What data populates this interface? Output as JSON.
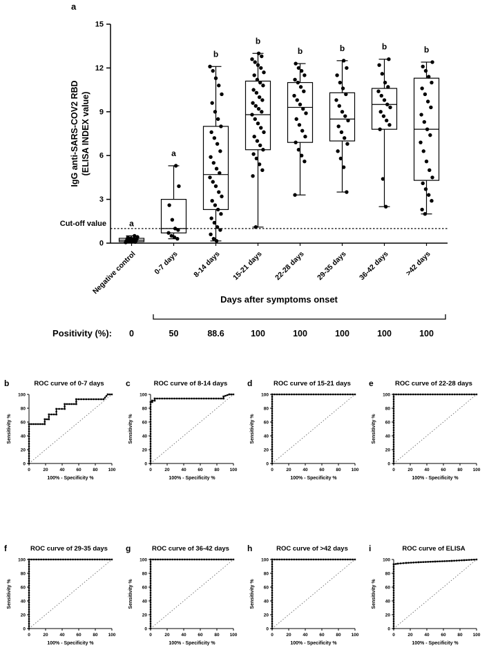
{
  "colors": {
    "ink": "#000000",
    "background": "#ffffff"
  },
  "chart_data": [
    {
      "type": "box-scatter",
      "panel_label": "a",
      "ylabel_lines": [
        "IgG anti-SARS-COV2 RBD",
        "(ELISA INDEX value)"
      ],
      "xlabel": "Days after symptoms onset",
      "ylim": [
        0,
        15
      ],
      "yticks": [
        0,
        3,
        6,
        9,
        12,
        15
      ],
      "cutoff": {
        "label": "Cut-off value",
        "value": 1.0
      },
      "positivity_label": "Positivity (%):",
      "categories": [
        {
          "label": "Negative control",
          "sig": "a",
          "positivity": "0",
          "box": {
            "lo": 0.05,
            "q1": 0.1,
            "median": 0.2,
            "q3": 0.33,
            "hi": 0.5
          },
          "points": [
            0.05,
            0.08,
            0.1,
            0.12,
            0.15,
            0.17,
            0.2,
            0.22,
            0.25,
            0.28,
            0.3,
            0.33,
            0.38,
            0.42,
            0.5
          ]
        },
        {
          "label": "0-7 days",
          "sig": "a",
          "positivity": "50",
          "box": {
            "lo": 0.3,
            "q1": 0.7,
            "median": 1.0,
            "q3": 3.0,
            "hi": 5.3
          },
          "points": [
            0.3,
            0.4,
            0.5,
            0.7,
            0.9,
            1.0,
            1.6,
            2.6,
            3.9,
            5.3
          ]
        },
        {
          "label": "8-14 days",
          "sig": "b",
          "positivity": "88.6",
          "box": {
            "lo": 0.15,
            "q1": 2.3,
            "median": 4.7,
            "q3": 8.0,
            "hi": 12.1
          },
          "points": [
            0.15,
            0.3,
            0.6,
            0.9,
            1.1,
            1.4,
            1.7,
            2.0,
            2.3,
            2.6,
            2.9,
            3.2,
            3.5,
            3.9,
            4.2,
            4.5,
            4.8,
            5.1,
            5.5,
            5.9,
            6.3,
            6.8,
            7.2,
            7.6,
            8.0,
            8.5,
            9.0,
            9.6,
            10.2,
            10.8,
            11.3,
            11.8,
            12.1
          ]
        },
        {
          "label": "15-21 days",
          "sig": "b",
          "positivity": "100",
          "box": {
            "lo": 1.1,
            "q1": 6.4,
            "median": 8.8,
            "q3": 11.1,
            "hi": 13.0
          },
          "points": [
            1.1,
            4.6,
            5.0,
            5.4,
            5.8,
            6.1,
            6.4,
            6.7,
            7.0,
            7.3,
            7.6,
            7.9,
            8.2,
            8.5,
            8.8,
            9.0,
            9.2,
            9.4,
            9.6,
            9.8,
            10.0,
            10.3,
            10.5,
            10.8,
            11.0,
            11.2,
            11.5,
            11.7,
            12.0,
            12.2,
            12.4,
            12.6,
            12.8,
            13.0
          ]
        },
        {
          "label": "22-28 days",
          "sig": "b",
          "positivity": "100",
          "box": {
            "lo": 3.3,
            "q1": 6.9,
            "median": 9.3,
            "q3": 11.0,
            "hi": 12.3
          },
          "points": [
            3.3,
            5.6,
            6.0,
            6.4,
            6.9,
            7.3,
            7.7,
            8.1,
            8.5,
            8.9,
            9.2,
            9.5,
            9.8,
            10.1,
            10.4,
            10.7,
            11.0,
            11.2,
            11.5,
            11.8,
            12.0,
            12.3
          ]
        },
        {
          "label": "29-35 days",
          "sig": "b",
          "positivity": "100",
          "box": {
            "lo": 3.5,
            "q1": 7.0,
            "median": 8.5,
            "q3": 10.3,
            "hi": 12.5
          },
          "points": [
            3.5,
            5.2,
            5.8,
            6.3,
            6.8,
            7.2,
            7.6,
            8.0,
            8.4,
            8.7,
            9.0,
            9.4,
            9.8,
            10.2,
            10.6,
            11.0,
            11.5,
            12.0,
            12.5
          ]
        },
        {
          "label": "36-42 days",
          "sig": "b",
          "positivity": "100",
          "box": {
            "lo": 2.5,
            "q1": 7.8,
            "median": 9.5,
            "q3": 10.6,
            "hi": 12.6
          },
          "points": [
            2.5,
            4.4,
            7.8,
            8.1,
            8.4,
            8.7,
            9.0,
            9.3,
            9.5,
            9.8,
            10.1,
            10.4,
            10.7,
            11.0,
            11.6,
            12.2,
            12.6
          ]
        },
        {
          "label": ">42 days",
          "sig": "b",
          "positivity": "100",
          "box": {
            "lo": 2.0,
            "q1": 4.3,
            "median": 7.8,
            "q3": 11.3,
            "hi": 12.4
          },
          "points": [
            2.0,
            2.3,
            2.9,
            3.3,
            3.7,
            4.1,
            4.5,
            5.0,
            5.6,
            6.3,
            6.9,
            7.4,
            7.8,
            8.3,
            8.8,
            9.3,
            9.7,
            10.2,
            10.6,
            11.0,
            11.4,
            11.8,
            12.1,
            12.4
          ]
        }
      ]
    },
    {
      "type": "roc",
      "panel_label": "b",
      "title": "ROC curve of 0-7 days",
      "xlabel": "100% - Specificity %",
      "ylabel": "Sensitivity %",
      "xlim": [
        0,
        100
      ],
      "ylim": [
        0,
        100
      ],
      "xticks": [
        0,
        20,
        40,
        60,
        80,
        100
      ],
      "yticks": [
        0,
        20,
        40,
        60,
        80,
        100
      ],
      "curve": [
        [
          0,
          0
        ],
        [
          0,
          57
        ],
        [
          19,
          57
        ],
        [
          19,
          64
        ],
        [
          24,
          64
        ],
        [
          24,
          71
        ],
        [
          33,
          71
        ],
        [
          33,
          79
        ],
        [
          43,
          79
        ],
        [
          43,
          86
        ],
        [
          57,
          86
        ],
        [
          57,
          93
        ],
        [
          90,
          93
        ],
        [
          95,
          100
        ],
        [
          100,
          100
        ]
      ]
    },
    {
      "type": "roc",
      "panel_label": "c",
      "title": "ROC curve of 8-14 days",
      "xlabel": "100% - Specificity %",
      "ylabel": "Sensitivity %",
      "xlim": [
        0,
        100
      ],
      "ylim": [
        0,
        100
      ],
      "xticks": [
        0,
        20,
        40,
        60,
        80,
        100
      ],
      "yticks": [
        0,
        20,
        40,
        60,
        80,
        100
      ],
      "curve": [
        [
          0,
          0
        ],
        [
          0,
          89
        ],
        [
          2,
          89
        ],
        [
          2,
          91
        ],
        [
          5,
          91
        ],
        [
          5,
          94
        ],
        [
          88,
          94
        ],
        [
          88,
          97
        ],
        [
          95,
          100
        ],
        [
          100,
          100
        ]
      ]
    },
    {
      "type": "roc",
      "panel_label": "d",
      "title": "ROC curve of 15-21 days",
      "xlabel": "100% - Specificity %",
      "ylabel": "Sensitivity %",
      "xlim": [
        0,
        100
      ],
      "ylim": [
        0,
        100
      ],
      "xticks": [
        0,
        20,
        40,
        60,
        80,
        100
      ],
      "yticks": [
        0,
        20,
        40,
        60,
        80,
        100
      ],
      "curve": [
        [
          0,
          0
        ],
        [
          0,
          100
        ],
        [
          100,
          100
        ]
      ]
    },
    {
      "type": "roc",
      "panel_label": "e",
      "title": "ROC curve of 22-28 days",
      "xlabel": "100% - Specificity %",
      "ylabel": "Sensitivity %",
      "xlim": [
        0,
        100
      ],
      "ylim": [
        0,
        100
      ],
      "xticks": [
        0,
        20,
        40,
        60,
        80,
        100
      ],
      "yticks": [
        0,
        20,
        40,
        60,
        80,
        100
      ],
      "curve": [
        [
          0,
          0
        ],
        [
          0,
          100
        ],
        [
          100,
          100
        ]
      ]
    },
    {
      "type": "roc",
      "panel_label": "f",
      "title": "ROC curve of 29-35 days",
      "xlabel": "100% - Specificity %",
      "ylabel": "Sensitivity %",
      "xlim": [
        0,
        100
      ],
      "ylim": [
        0,
        100
      ],
      "xticks": [
        0,
        20,
        40,
        60,
        80,
        100
      ],
      "yticks": [
        0,
        20,
        40,
        60,
        80,
        100
      ],
      "curve": [
        [
          0,
          0
        ],
        [
          0,
          100
        ],
        [
          100,
          100
        ]
      ]
    },
    {
      "type": "roc",
      "panel_label": "g",
      "title": "ROC curve of 36-42 days",
      "xlabel": "100% - Specificity %",
      "ylabel": "Sensitivity %",
      "xlim": [
        0,
        100
      ],
      "ylim": [
        0,
        100
      ],
      "xticks": [
        0,
        20,
        40,
        60,
        80,
        100
      ],
      "yticks": [
        0,
        20,
        40,
        60,
        80,
        100
      ],
      "curve": [
        [
          0,
          0
        ],
        [
          0,
          100
        ],
        [
          100,
          100
        ]
      ]
    },
    {
      "type": "roc",
      "panel_label": "h",
      "title": "ROC curve of >42 days",
      "xlabel": "100% - Specificity %",
      "ylabel": "Sensitivity %",
      "xlim": [
        0,
        100
      ],
      "ylim": [
        0,
        100
      ],
      "xticks": [
        0,
        20,
        40,
        60,
        80,
        100
      ],
      "yticks": [
        0,
        20,
        40,
        60,
        80,
        100
      ],
      "curve": [
        [
          0,
          0
        ],
        [
          0,
          100
        ],
        [
          100,
          100
        ]
      ]
    },
    {
      "type": "roc",
      "panel_label": "i",
      "title": "ROC curve of ELISA",
      "xlabel": "100% - Specificity %",
      "ylabel": "Sensitivity %",
      "xlim": [
        0,
        100
      ],
      "ylim": [
        0,
        100
      ],
      "xticks": [
        0,
        20,
        40,
        60,
        80,
        100
      ],
      "yticks": [
        0,
        20,
        40,
        60,
        80,
        100
      ],
      "curve": [
        [
          0,
          0
        ],
        [
          0,
          93
        ],
        [
          5,
          94
        ],
        [
          15,
          95
        ],
        [
          30,
          96
        ],
        [
          50,
          97
        ],
        [
          70,
          98
        ],
        [
          85,
          99
        ],
        [
          100,
          100
        ]
      ]
    }
  ]
}
